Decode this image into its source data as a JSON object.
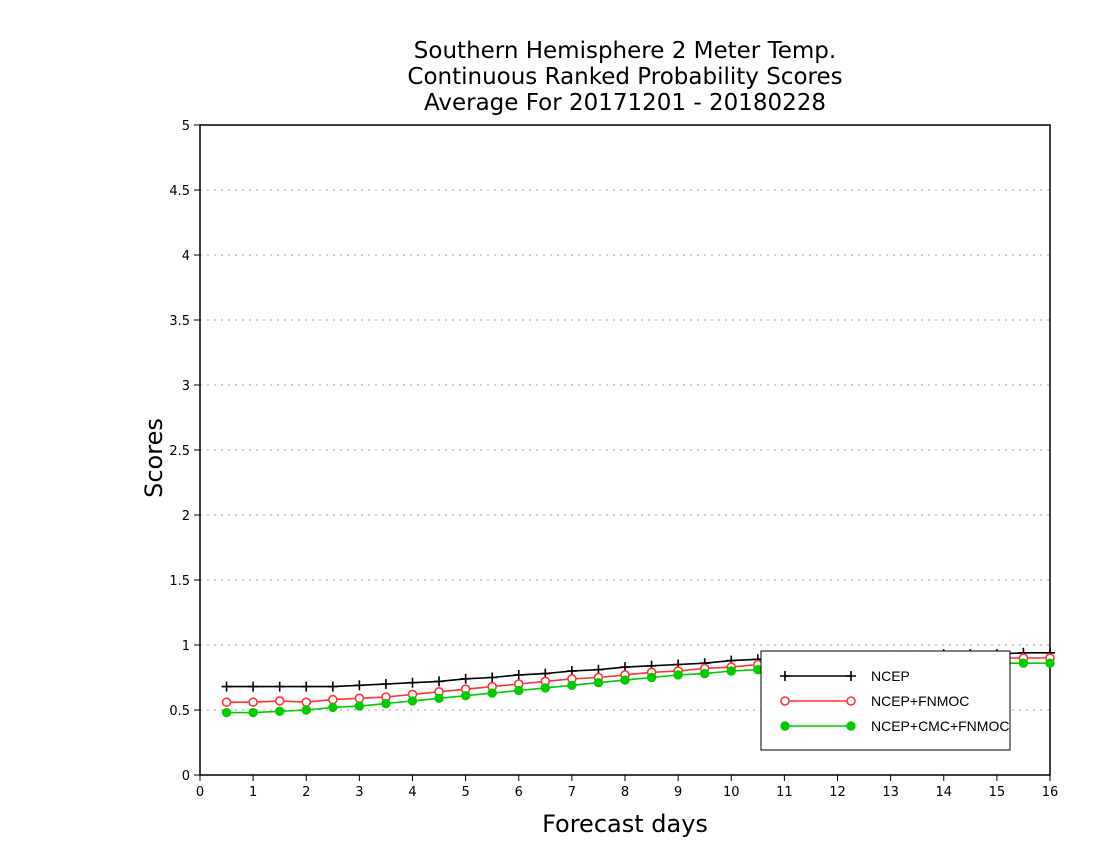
{
  "chart_data": {
    "type": "line",
    "title": [
      "Southern Hemisphere 2 Meter Temp.",
      "Continuous Ranked Probability Scores",
      "Average For 20171201 - 20180228"
    ],
    "xlabel": "Forecast days",
    "ylabel": "Scores",
    "xlim": [
      0,
      16
    ],
    "ylim": [
      0,
      5
    ],
    "xticks": [
      "0",
      "1",
      "2",
      "3",
      "4",
      "5",
      "6",
      "7",
      "8",
      "9",
      "10",
      "11",
      "12",
      "13",
      "14",
      "15",
      "16"
    ],
    "yticks": [
      "0",
      "0.5",
      "1",
      "1.5",
      "2",
      "2.5",
      "3",
      "3.5",
      "4",
      "4.5",
      "5"
    ],
    "grid": true,
    "legend_position": "bottom-right",
    "x": [
      0.5,
      1,
      1.5,
      2,
      2.5,
      3,
      3.5,
      4,
      4.5,
      5,
      5.5,
      6,
      6.5,
      7,
      7.5,
      8,
      8.5,
      9,
      9.5,
      10,
      10.5,
      11,
      11.5,
      12,
      12.5,
      13,
      13.5,
      14,
      14.5,
      15,
      15.5,
      16
    ],
    "series": [
      {
        "name": "NCEP",
        "color": "#000000",
        "marker": "plus",
        "values": [
          0.68,
          0.68,
          0.68,
          0.68,
          0.68,
          0.69,
          0.7,
          0.71,
          0.72,
          0.74,
          0.75,
          0.77,
          0.78,
          0.8,
          0.81,
          0.83,
          0.84,
          0.85,
          0.86,
          0.88,
          0.89,
          0.9,
          0.9,
          0.91,
          0.91,
          0.92,
          0.92,
          0.93,
          0.93,
          0.93,
          0.94,
          0.94
        ]
      },
      {
        "name": "NCEP+FNMOC",
        "color": "#ff3333",
        "marker": "open-circle",
        "values": [
          0.56,
          0.56,
          0.57,
          0.56,
          0.58,
          0.59,
          0.6,
          0.62,
          0.64,
          0.66,
          0.68,
          0.7,
          0.72,
          0.74,
          0.75,
          0.77,
          0.79,
          0.8,
          0.82,
          0.83,
          0.85,
          0.86,
          0.86,
          0.87,
          0.87,
          0.88,
          0.88,
          0.89,
          0.89,
          0.9,
          0.9,
          0.9
        ]
      },
      {
        "name": "NCEP+CMC+FNMOC",
        "color": "#00cc00",
        "marker": "filled-circle",
        "values": [
          0.48,
          0.48,
          0.49,
          0.5,
          0.52,
          0.53,
          0.55,
          0.57,
          0.59,
          0.61,
          0.63,
          0.65,
          0.67,
          0.69,
          0.71,
          0.73,
          0.75,
          0.77,
          0.78,
          0.8,
          0.81,
          0.82,
          0.83,
          0.84,
          0.84,
          0.85,
          0.85,
          0.85,
          0.86,
          0.86,
          0.86,
          0.86
        ]
      }
    ]
  }
}
